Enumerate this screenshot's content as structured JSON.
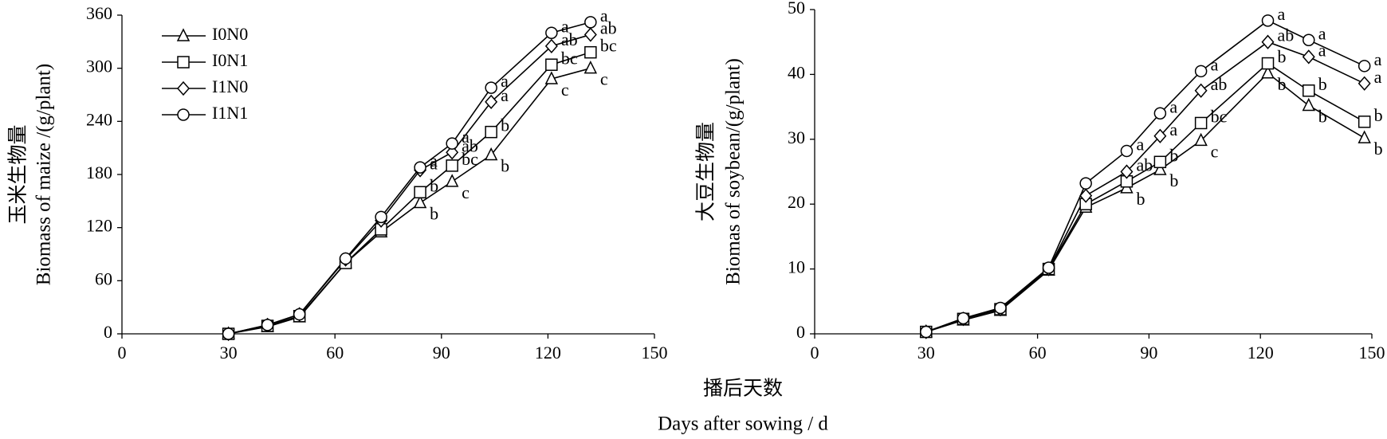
{
  "xlabel": [
    "播后天数",
    "Days after sowing / d"
  ],
  "chart_data": [
    {
      "type": "line",
      "ylabel": [
        "玉米生物量",
        "Biomass of maize /(g/plant)"
      ],
      "x": [
        30,
        41,
        50,
        63,
        73,
        84,
        93,
        104,
        121,
        132
      ],
      "xlim": [
        0,
        150
      ],
      "xticks": [
        0,
        30,
        60,
        90,
        120,
        150
      ],
      "ylim": [
        0,
        360
      ],
      "yticks": [
        0,
        60,
        120,
        180,
        240,
        300,
        360
      ],
      "legend": "upper left",
      "series": [
        {
          "name": "I0N0",
          "color": "#000000",
          "marker": "triangle",
          "values": [
            0,
            8,
            19,
            80,
            115,
            148,
            172,
            202,
            288,
            300
          ],
          "labels": [
            null,
            null,
            null,
            null,
            null,
            "b",
            "c",
            "b",
            "c",
            "c"
          ]
        },
        {
          "name": "I0N1",
          "color": "#000000",
          "marker": "square",
          "values": [
            0,
            9,
            20,
            80,
            118,
            160,
            190,
            228,
            304,
            318
          ],
          "labels": [
            null,
            null,
            null,
            null,
            null,
            "b",
            "bc",
            "b",
            "bc",
            "bc"
          ]
        },
        {
          "name": "I1N0",
          "color": "#000000",
          "marker": "diamond",
          "values": [
            0,
            10,
            22,
            84,
            128,
            185,
            205,
            262,
            325,
            338
          ],
          "labels": [
            null,
            null,
            null,
            null,
            null,
            "a",
            "ab",
            "a",
            "ab",
            "ab"
          ]
        },
        {
          "name": "I1N1",
          "color": "#000000",
          "marker": "circle",
          "values": [
            0,
            10,
            22,
            85,
            132,
            188,
            215,
            278,
            340,
            352
          ],
          "labels": [
            null,
            null,
            null,
            null,
            null,
            "a",
            "a",
            "a",
            "a",
            "a"
          ]
        }
      ]
    },
    {
      "type": "line",
      "ylabel": [
        "大豆生物量",
        "Biomas of soybean/(g/plant)"
      ],
      "x": [
        30,
        40,
        50,
        63,
        73,
        84,
        93,
        104,
        122,
        133,
        148
      ],
      "xlim": [
        0,
        150
      ],
      "xticks": [
        0,
        30,
        60,
        90,
        120,
        150
      ],
      "ylim": [
        0,
        50
      ],
      "yticks": [
        0,
        10,
        20,
        30,
        40,
        50
      ],
      "series": [
        {
          "name": "I0N0",
          "color": "#000000",
          "marker": "triangle",
          "values": [
            0.3,
            2.1,
            3.6,
            9.8,
            19.5,
            22.5,
            25.3,
            29.8,
            40.2,
            35.2,
            30.2
          ],
          "labels": [
            null,
            null,
            null,
            null,
            null,
            "b",
            "b",
            "c",
            "b",
            "b",
            "b"
          ]
        },
        {
          "name": "I0N1",
          "color": "#000000",
          "marker": "square",
          "values": [
            0.3,
            2.3,
            3.8,
            10.0,
            20.0,
            23.5,
            26.5,
            32.5,
            41.7,
            37.5,
            32.7
          ],
          "labels": [
            null,
            null,
            null,
            null,
            null,
            null,
            "b",
            "bc",
            "b",
            "b",
            "b"
          ]
        },
        {
          "name": "I1N0",
          "color": "#000000",
          "marker": "diamond",
          "values": [
            0.3,
            2.3,
            3.8,
            10.0,
            21.3,
            25.0,
            30.5,
            37.5,
            45.0,
            42.7,
            38.6
          ],
          "labels": [
            null,
            null,
            null,
            null,
            null,
            "ab",
            "a",
            "ab",
            "ab",
            "a",
            "a"
          ]
        },
        {
          "name": "I1N1",
          "color": "#000000",
          "marker": "circle",
          "values": [
            0.3,
            2.4,
            4.0,
            10.2,
            23.2,
            28.2,
            34.0,
            40.5,
            48.3,
            45.3,
            41.3
          ],
          "labels": [
            null,
            null,
            null,
            null,
            null,
            "a",
            "a",
            "a",
            "a",
            "a",
            "a"
          ]
        }
      ]
    }
  ]
}
